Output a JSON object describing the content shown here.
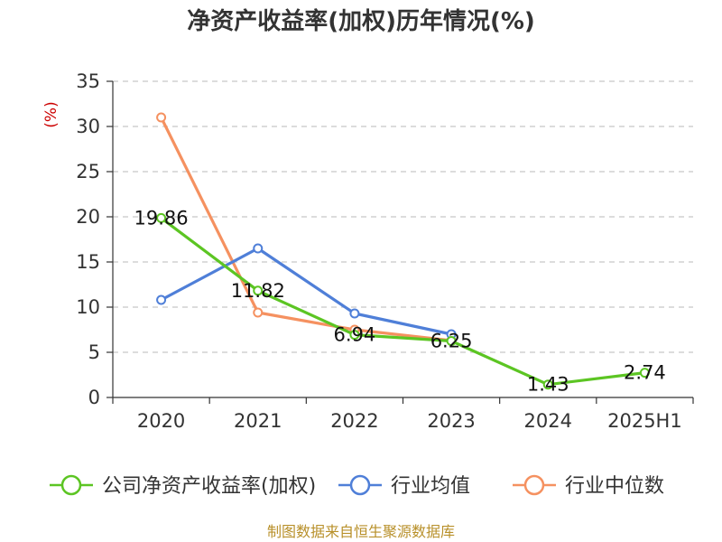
{
  "chart_data": {
    "type": "line",
    "title": "净资产收益率(加权)历年情况(%)",
    "ylabel": "(%)",
    "categories": [
      "2020",
      "2021",
      "2022",
      "2023",
      "2024",
      "2025H1"
    ],
    "ylim": [
      0,
      35
    ],
    "yticks": [
      0,
      5,
      10,
      15,
      20,
      25,
      30,
      35
    ],
    "grid": true,
    "legend_position": "bottom",
    "series": [
      {
        "name": "公司净资产收益率(加权)",
        "color": "#5cc523",
        "values": [
          19.86,
          11.82,
          6.94,
          6.25,
          1.43,
          2.74
        ],
        "labels": [
          "19.86",
          "11.82",
          "6.94",
          "6.25",
          "1.43",
          "2.74"
        ]
      },
      {
        "name": "行业均值",
        "color": "#4f7fd8",
        "values": [
          10.8,
          16.5,
          9.3,
          7.0,
          null,
          null
        ]
      },
      {
        "name": "行业中位数",
        "color": "#f59160",
        "values": [
          31.0,
          9.4,
          7.5,
          6.3,
          null,
          null
        ]
      }
    ]
  },
  "source_text": "制图数据来自恒生聚源数据库"
}
